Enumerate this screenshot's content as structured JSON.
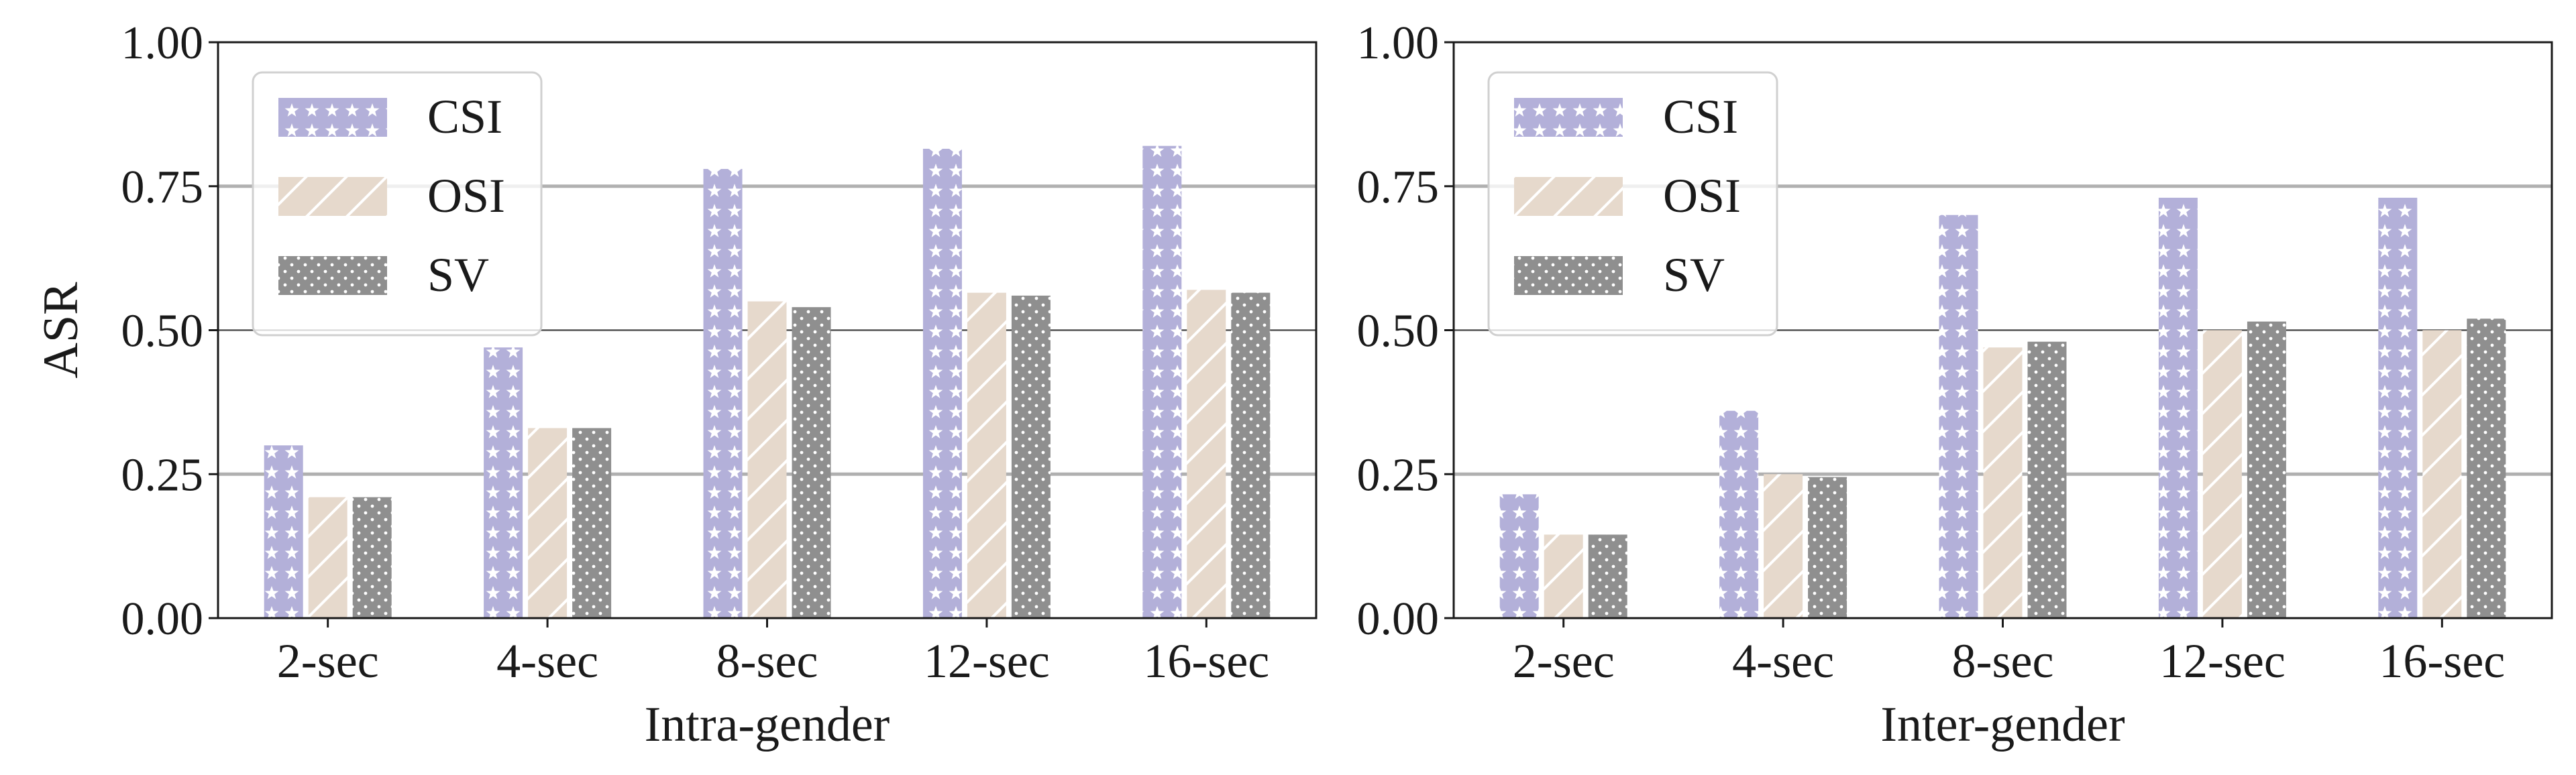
{
  "chart_data": [
    {
      "type": "bar",
      "xlabel": "Intra-gender",
      "ylabel": "ASR",
      "ylim": [
        0,
        1
      ],
      "yticks": [
        "0.00",
        "0.25",
        "0.50",
        "0.75",
        "1.00"
      ],
      "categories": [
        "2-sec",
        "4-sec",
        "8-sec",
        "12-sec",
        "16-sec"
      ],
      "grid": "horizontal",
      "legend": "top-left",
      "series": [
        {
          "name": "CSI",
          "values": [
            0.3,
            0.47,
            0.78,
            0.815,
            0.82
          ]
        },
        {
          "name": "OSI",
          "values": [
            0.21,
            0.33,
            0.55,
            0.565,
            0.57
          ]
        },
        {
          "name": "SV",
          "values": [
            0.21,
            0.33,
            0.54,
            0.56,
            0.565
          ]
        }
      ]
    },
    {
      "type": "bar",
      "xlabel": "Inter-gender",
      "ylabel": "",
      "ylim": [
        0,
        1
      ],
      "yticks": [
        "0.00",
        "0.25",
        "0.50",
        "0.75",
        "1.00"
      ],
      "categories": [
        "2-sec",
        "4-sec",
        "8-sec",
        "12-sec",
        "16-sec"
      ],
      "grid": "horizontal",
      "legend": "top-left",
      "series": [
        {
          "name": "CSI",
          "values": [
            0.215,
            0.36,
            0.7,
            0.73,
            0.73
          ]
        },
        {
          "name": "OSI",
          "values": [
            0.145,
            0.25,
            0.47,
            0.5,
            0.5
          ]
        },
        {
          "name": "SV",
          "values": [
            0.145,
            0.245,
            0.48,
            0.515,
            0.52
          ]
        }
      ]
    }
  ],
  "colors": {
    "CSI": "#b3b0d9",
    "OSI": "#e6d9cc",
    "SV": "#8f8f8f",
    "grid": "#b0b0b0",
    "axis": "#1a1a1a"
  }
}
